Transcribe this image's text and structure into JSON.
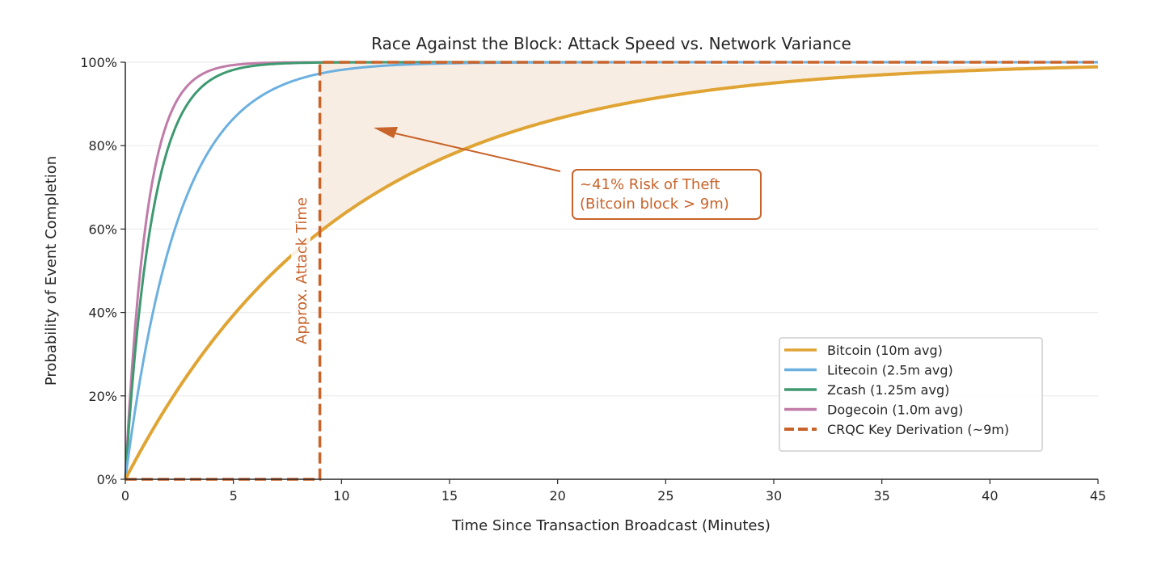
{
  "chart_data": {
    "type": "line",
    "title": "Race Against the Block: Attack Speed vs. Network Variance",
    "xlabel": "Time Since Transaction Broadcast (Minutes)",
    "ylabel": "Probability of Event Completion",
    "xlim": [
      0,
      45
    ],
    "ylim": [
      0,
      100
    ],
    "xticks": [
      0,
      5,
      10,
      15,
      20,
      25,
      30,
      35,
      40,
      45
    ],
    "yticks": [
      0,
      20,
      40,
      60,
      80,
      100
    ],
    "ytick_labels": [
      "0%",
      "20%",
      "40%",
      "60%",
      "80%",
      "100%"
    ],
    "grid": "horizontal",
    "legend_position": "lower-right",
    "series": [
      {
        "name": "Bitcoin (10m avg)",
        "mean_minutes": 10,
        "formula": "1-exp(-t/mean)",
        "color": "#e0a434",
        "style": "solid"
      },
      {
        "name": "Litecoin (2.5m avg)",
        "mean_minutes": 2.5,
        "formula": "1-exp(-t/mean)",
        "color": "#6cb0e0",
        "style": "solid"
      },
      {
        "name": "Zcash (1.25m avg)",
        "mean_minutes": 1.25,
        "formula": "1-exp(-t/mean)",
        "color": "#3e9970",
        "style": "solid"
      },
      {
        "name": "Dogecoin (1.0m avg)",
        "mean_minutes": 1.0,
        "formula": "1-exp(-t/mean)",
        "color": "#c07ba8",
        "style": "solid"
      },
      {
        "name": "CRQC Key Derivation (~9m)",
        "step_at": 9,
        "formula": "step",
        "color": "#c8632a",
        "style": "dashed"
      }
    ],
    "annotations": {
      "vertical_label": "Approx. Attack Time",
      "risk_box_line1": "~41% Risk of Theft",
      "risk_box_line2": "(Bitcoin block > 9m)",
      "arrow_target": {
        "x": 11.5,
        "y": 84
      },
      "shaded_region": {
        "from_x": 9,
        "to_x": 45,
        "between": "Bitcoin curve and 100%",
        "color": "#f7ede3"
      }
    }
  }
}
